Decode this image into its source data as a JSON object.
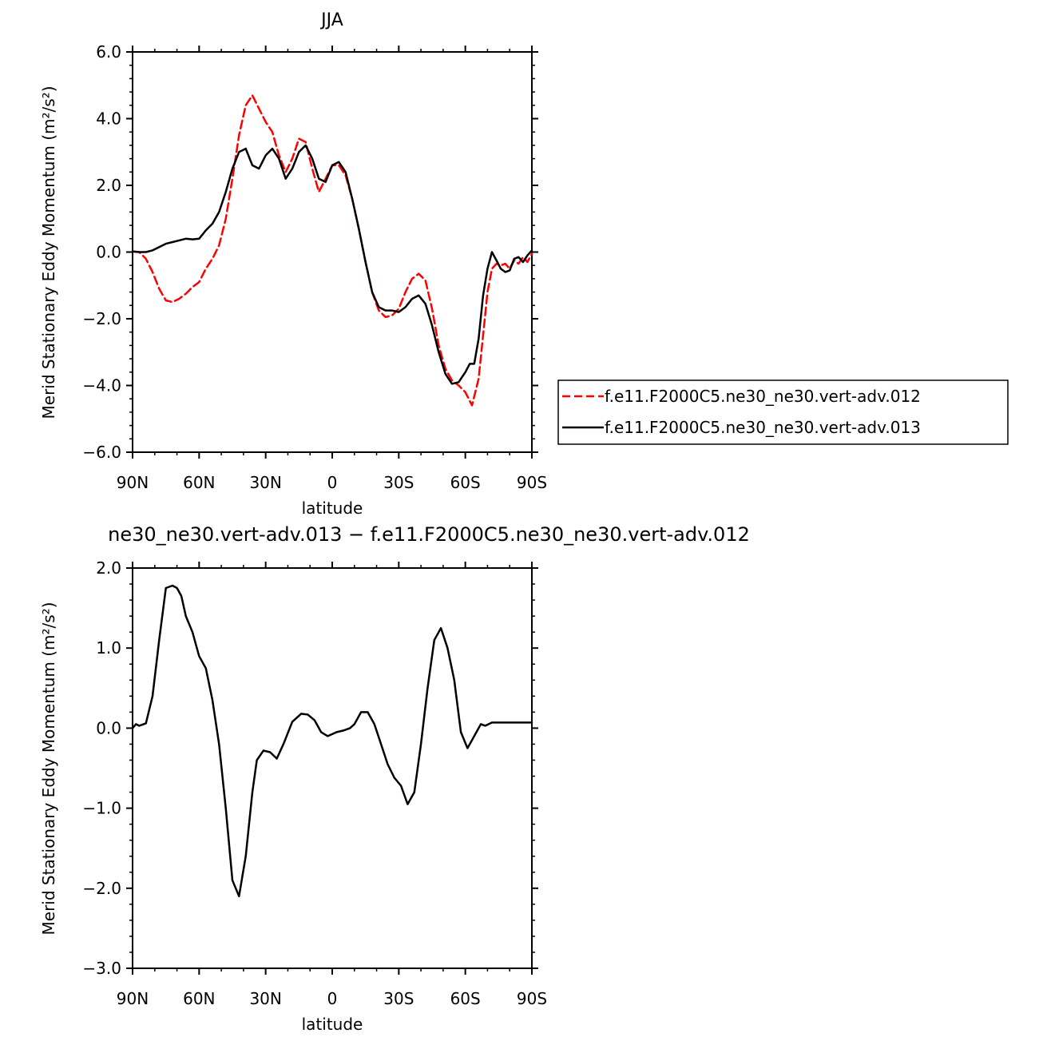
{
  "chart_data": [
    {
      "type": "line",
      "title": "JJA",
      "xlabel": "latitude",
      "ylabel": "Merid Stationary Eddy Momentum (m²/s²)",
      "xlim": [
        90,
        -90
      ],
      "ylim": [
        -6,
        6
      ],
      "x_ticks": [
        90,
        60,
        30,
        0,
        -30,
        -60,
        -90
      ],
      "x_tick_labels": [
        "90N",
        "60N",
        "30N",
        "0",
        "30S",
        "60S",
        "90S"
      ],
      "y_ticks": [
        -6,
        -4,
        -2,
        0,
        2,
        4,
        6
      ],
      "y_tick_labels": [
        "−6.0",
        "−4.0",
        "−2.0",
        "0.0",
        "2.0",
        "4.0",
        "6.0"
      ],
      "grid": false,
      "legend_position": "right",
      "series": [
        {
          "name": "f.e11.F2000C5.ne30_ne30.vert-adv.012",
          "color": "#ff0000",
          "dash": "dashed",
          "x": [
            90,
            87,
            84,
            81,
            78,
            75,
            72,
            69,
            66,
            63,
            60,
            57,
            54,
            51,
            48,
            45,
            42,
            39,
            36,
            33,
            30,
            27,
            24,
            21,
            18,
            15,
            12,
            9,
            6,
            3,
            0,
            -3,
            -6,
            -9,
            -12,
            -15,
            -18,
            -21,
            -24,
            -27,
            -30,
            -33,
            -36,
            -39,
            -42,
            -45,
            -48,
            -51,
            -54,
            -57,
            -60,
            -63,
            -66,
            -68,
            -70,
            -72,
            -74,
            -76,
            -78,
            -80,
            -82,
            -84,
            -86,
            -88,
            -90
          ],
          "y": [
            0.02,
            0.0,
            -0.2,
            -0.6,
            -1.1,
            -1.45,
            -1.5,
            -1.4,
            -1.25,
            -1.05,
            -0.9,
            -0.5,
            -0.2,
            0.2,
            1.0,
            2.2,
            3.5,
            4.4,
            4.7,
            4.3,
            3.9,
            3.6,
            2.9,
            2.4,
            2.8,
            3.4,
            3.3,
            2.5,
            1.8,
            2.2,
            2.6,
            2.6,
            2.3,
            1.6,
            0.7,
            -0.3,
            -1.2,
            -1.75,
            -1.95,
            -1.9,
            -1.7,
            -1.2,
            -0.8,
            -0.65,
            -0.85,
            -1.7,
            -2.8,
            -3.5,
            -3.85,
            -4.0,
            -4.2,
            -4.6,
            -3.8,
            -2.5,
            -1.2,
            -0.5,
            -0.35,
            -0.4,
            -0.35,
            -0.5,
            -0.25,
            -0.35,
            -0.15,
            -0.3,
            -0.05
          ]
        },
        {
          "name": "f.e11.F2000C5.ne30_ne30.vert-adv.013",
          "color": "#000000",
          "dash": "solid",
          "x": [
            90,
            87,
            84,
            81,
            78,
            75,
            72,
            69,
            66,
            63,
            60,
            57,
            54,
            51,
            48,
            45,
            42,
            39,
            36,
            33,
            30,
            27,
            24,
            21,
            18,
            15,
            12,
            9,
            6,
            3,
            0,
            -3,
            -6,
            -9,
            -12,
            -15,
            -18,
            -21,
            -24,
            -27,
            -30,
            -33,
            -36,
            -39,
            -42,
            -45,
            -48,
            -51,
            -54,
            -57,
            -60,
            -62,
            -64,
            -66,
            -68,
            -70,
            -72,
            -74,
            -76,
            -78,
            -80,
            -82,
            -84,
            -86,
            -88,
            -90
          ],
          "y": [
            0.02,
            0.0,
            0.0,
            0.05,
            0.15,
            0.25,
            0.3,
            0.35,
            0.4,
            0.38,
            0.4,
            0.65,
            0.85,
            1.2,
            1.8,
            2.5,
            3.0,
            3.1,
            2.6,
            2.5,
            2.9,
            3.1,
            2.8,
            2.2,
            2.5,
            3.0,
            3.2,
            2.8,
            2.2,
            2.1,
            2.6,
            2.7,
            2.4,
            1.6,
            0.7,
            -0.3,
            -1.2,
            -1.65,
            -1.75,
            -1.75,
            -1.8,
            -1.65,
            -1.4,
            -1.3,
            -1.55,
            -2.2,
            -3.0,
            -3.65,
            -3.95,
            -3.9,
            -3.6,
            -3.35,
            -3.35,
            -2.6,
            -1.3,
            -0.5,
            0.0,
            -0.25,
            -0.5,
            -0.6,
            -0.55,
            -0.2,
            -0.15,
            -0.3,
            -0.1,
            0.05
          ]
        }
      ]
    },
    {
      "type": "line",
      "title": "ne30_ne30.vert-adv.013 − f.e11.F2000C5.ne30_ne30.vert-adv.012",
      "xlabel": "latitude",
      "ylabel": "Merid Stationary Eddy Momentum (m²/s²)",
      "xlim": [
        90,
        -90
      ],
      "ylim": [
        -3,
        2
      ],
      "x_ticks": [
        90,
        60,
        30,
        0,
        -30,
        -60,
        -90
      ],
      "x_tick_labels": [
        "90N",
        "60N",
        "30N",
        "0",
        "30S",
        "60S",
        "90S"
      ],
      "y_ticks": [
        -3,
        -2,
        -1,
        0,
        1,
        2
      ],
      "y_tick_labels": [
        "−3.0",
        "−2.0",
        "−1.0",
        "0.0",
        "1.0",
        "2.0"
      ],
      "grid": false,
      "series": [
        {
          "color": "#000000",
          "dash": "solid",
          "x": [
            90,
            88.5,
            87,
            84,
            81,
            78,
            75,
            72,
            70,
            68,
            66,
            63,
            60,
            57,
            54,
            51,
            48,
            45,
            42,
            39,
            36,
            34,
            31,
            28,
            25,
            22,
            18,
            14,
            11,
            8,
            5,
            2,
            -2,
            -5,
            -8,
            -10,
            -13,
            -16,
            -19,
            -22,
            -25,
            -28,
            -31,
            -34,
            -37,
            -40,
            -43,
            -46,
            -49,
            -52,
            -55,
            -58,
            -61,
            -64,
            -67,
            -69,
            -72,
            -75,
            -78,
            -81,
            -84,
            -87,
            -90
          ],
          "y": [
            0.0,
            0.05,
            0.03,
            0.06,
            0.4,
            1.1,
            1.75,
            1.78,
            1.75,
            1.65,
            1.4,
            1.2,
            0.9,
            0.75,
            0.35,
            -0.2,
            -1.0,
            -1.9,
            -2.1,
            -1.6,
            -0.8,
            -0.4,
            -0.28,
            -0.3,
            -0.38,
            -0.2,
            0.08,
            0.18,
            0.17,
            0.1,
            -0.05,
            -0.1,
            -0.05,
            -0.03,
            0.0,
            0.05,
            0.2,
            0.2,
            0.05,
            -0.2,
            -0.45,
            -0.62,
            -0.72,
            -0.95,
            -0.8,
            -0.2,
            0.5,
            1.1,
            1.25,
            1.0,
            0.6,
            -0.05,
            -0.25,
            -0.1,
            0.05,
            0.03,
            0.07,
            0.07,
            0.07,
            0.07,
            0.07,
            0.07,
            0.07
          ]
        }
      ]
    }
  ]
}
